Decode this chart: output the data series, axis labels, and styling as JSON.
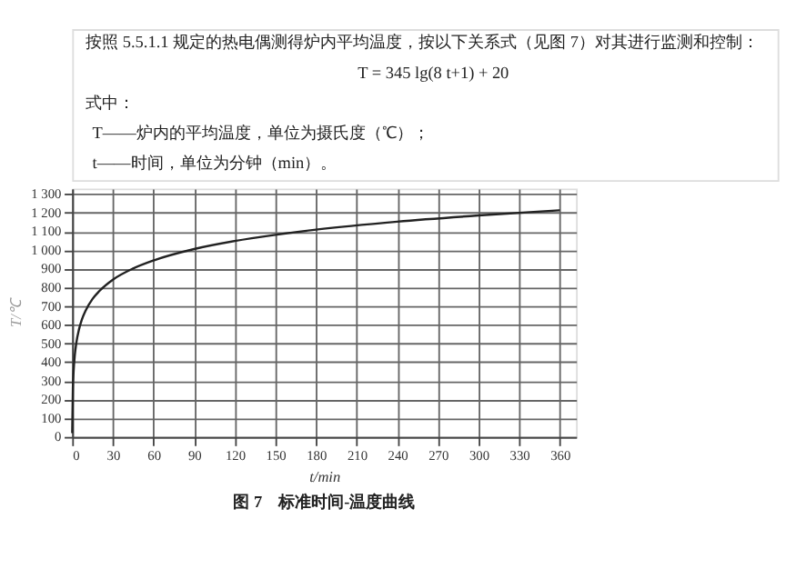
{
  "chart_data": {
    "type": "line",
    "title": "图 7　标准时间-温度曲线",
    "xlabel": "t/min",
    "ylabel": "T/℃",
    "annotations": [
      "按照 5.5.1.1 规定的热电偶测得炉内平均温度，按以下关系式（见图 7）对其进行监测和控制：",
      "T = 345 lg(8 t+1) + 20",
      "式中：",
      "T——炉内的平均温度，单位为摄氏度（℃）；",
      "t——时间，单位为分钟（min）。"
    ],
    "x": [
      0,
      0.5,
      1,
      2,
      3,
      5,
      7,
      10,
      15,
      20,
      30,
      45,
      60,
      90,
      120,
      150,
      180,
      240,
      300,
      360
    ],
    "series": [
      {
        "color": "#222222",
        "values": [
          20,
          261,
          349,
          444,
          502,
          576,
          626,
          678,
          739,
          781,
          842,
          902,
          945,
          1006,
          1049,
          1082,
          1110,
          1153,
          1186,
          1214
        ]
      }
    ],
    "xlim": [
      0,
      372
    ],
    "ylim": [
      0,
      1330
    ],
    "xticks": [
      0,
      30,
      60,
      90,
      120,
      150,
      180,
      210,
      240,
      270,
      300,
      330,
      360
    ],
    "yticks": [
      0,
      100,
      200,
      300,
      400,
      500,
      600,
      700,
      800,
      900,
      {
        "value": 1000,
        "label": "1 000"
      },
      {
        "value": 1100,
        "label": "1 100"
      },
      {
        "value": 1200,
        "label": "1 200"
      },
      {
        "value": 1300,
        "label": "1 300"
      }
    ],
    "grid": true
  }
}
